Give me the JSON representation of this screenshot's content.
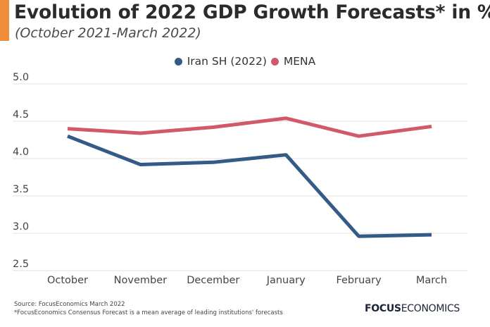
{
  "header": {
    "title": "Evolution of 2022 GDP Growth Forecasts* in %",
    "subtitle": "(October 2021-March 2022)",
    "accent_color": "#ef8d3b"
  },
  "legend": [
    {
      "label": "Iran SH (2022)",
      "color": "#335b85"
    },
    {
      "label": "MENA",
      "color": "#d05a6a"
    }
  ],
  "chart_data": {
    "type": "line",
    "title": "Evolution of 2022 GDP Growth Forecasts* in %",
    "subtitle": "(October 2021-March 2022)",
    "xlabel": "",
    "ylabel": "",
    "categories": [
      "October",
      "November",
      "December",
      "January",
      "February",
      "March"
    ],
    "series": [
      {
        "name": "Iran SH (2022)",
        "color": "#335b85",
        "values": [
          4.3,
          3.92,
          3.95,
          4.05,
          2.96,
          2.98
        ]
      },
      {
        "name": "MENA",
        "color": "#d05a6a",
        "values": [
          4.4,
          4.34,
          4.42,
          4.54,
          4.3,
          4.43
        ]
      }
    ],
    "ylim": [
      2.5,
      5.0
    ],
    "yticks": [
      2.5,
      3.0,
      3.5,
      4.0,
      4.5,
      5.0
    ],
    "ytick_labels": [
      "2.5",
      "3.0",
      "3.5",
      "4.0",
      "4.5",
      "5.0"
    ],
    "grid": true,
    "legend_position": "top-center"
  },
  "footer": {
    "source": "Source: FocusEconomics March 2022",
    "note": "*FocusEconomics Consensus Forecast is a mean average of leading institutions' forecasts",
    "brand_bold": "FOCUS",
    "brand_light": "ECONOMICS"
  }
}
